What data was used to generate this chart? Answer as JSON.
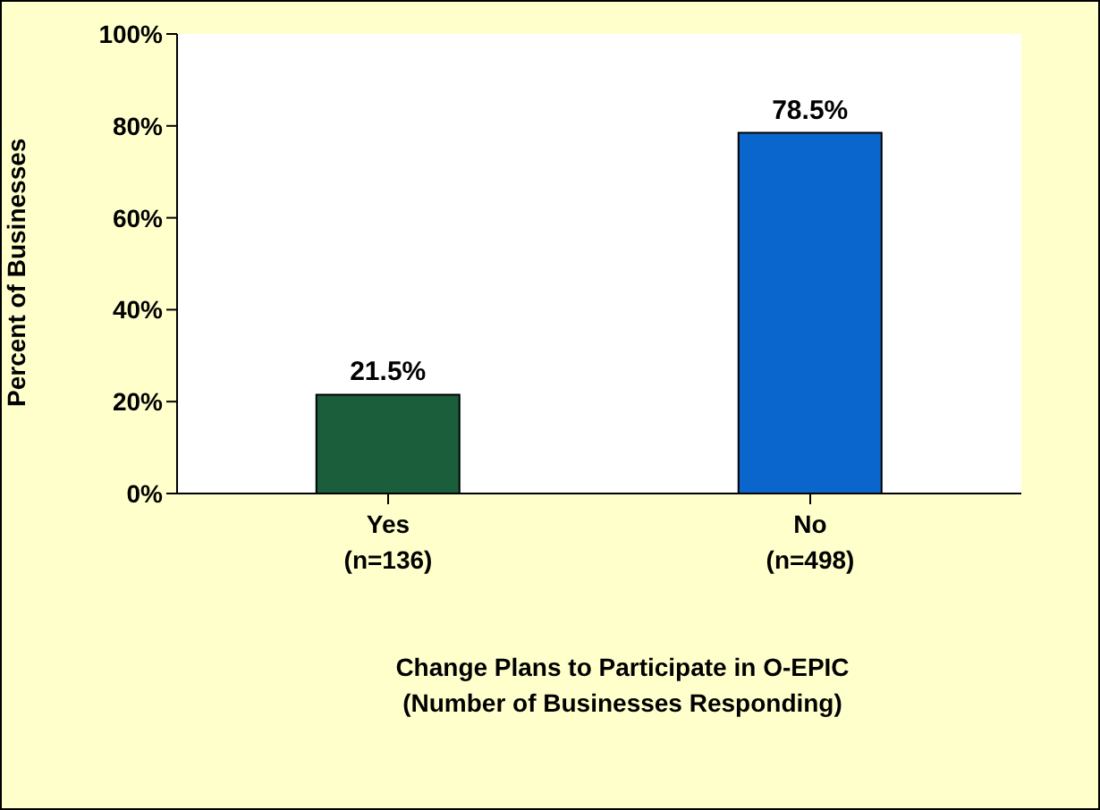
{
  "chart_data": {
    "type": "bar",
    "categories": [
      "Yes\n(n=136)",
      "No\n(n=498)"
    ],
    "values": [
      21.5,
      78.5
    ],
    "colors": [
      "#1b5e3b",
      "#0a66cc"
    ],
    "value_labels": [
      "21.5%",
      "78.5%"
    ],
    "ylabel": "Percent of Businesses",
    "xlabel": "Change Plans to Participate in O-EPIC\n(Number of Businesses Responding)",
    "ylim": [
      0,
      100
    ],
    "yticks": [
      {
        "value": 0,
        "label": "0%"
      },
      {
        "value": 20,
        "label": "20%"
      },
      {
        "value": 40,
        "label": "40%"
      },
      {
        "value": 60,
        "label": "60%"
      },
      {
        "value": 80,
        "label": "80%"
      },
      {
        "value": 100,
        "label": "100%"
      }
    ]
  }
}
